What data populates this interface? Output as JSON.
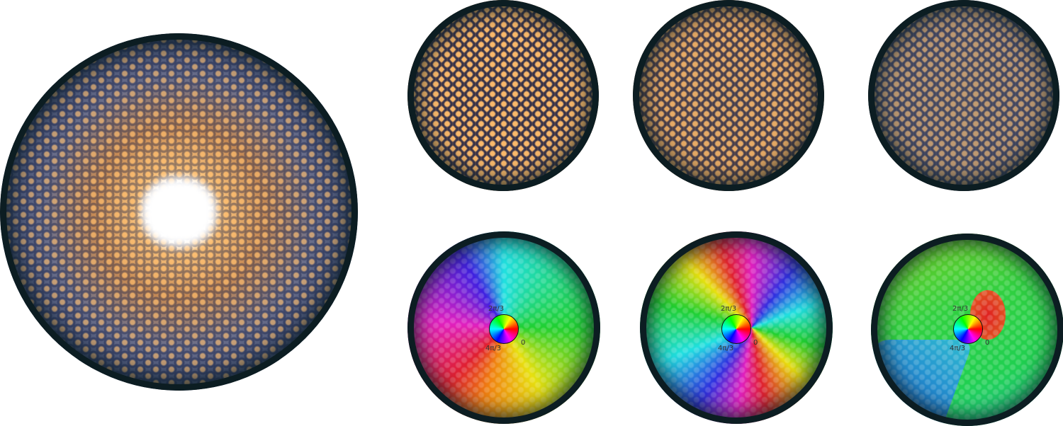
{
  "phase_panels": [
    {
      "wheel_labels": {
        "top": "2π/3",
        "bottom": "4π/3",
        "zero": "0"
      }
    },
    {
      "wheel_labels": {
        "top": "2π/3",
        "bottom": "4π/3",
        "zero": "0"
      }
    },
    {
      "wheel_labels": {
        "top": "2π/3",
        "bottom": "4π/3",
        "zero": "0"
      }
    }
  ]
}
